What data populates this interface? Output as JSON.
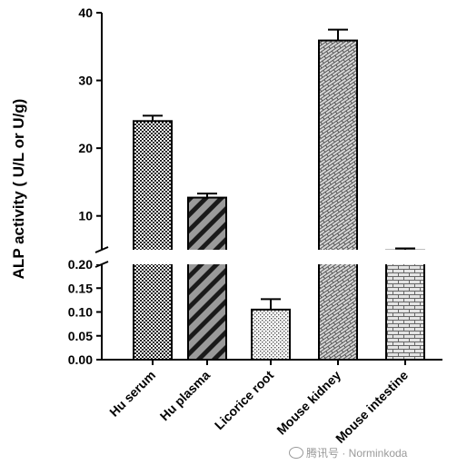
{
  "chart_data": {
    "type": "bar",
    "ylabel": "ALP activity ( U/L or U/g)",
    "categories": [
      "Hu serum",
      "Hu plasma",
      "Licorice root",
      "Mouse kidney",
      "Mouse intestine"
    ],
    "values": [
      24.0,
      12.7,
      0.105,
      35.9,
      4.9
    ],
    "errors": [
      0.8,
      0.6,
      0.022,
      1.6,
      0.3
    ],
    "patterns": [
      "checker",
      "diagonal-stripes",
      "dots",
      "brick-diagonal",
      "brick"
    ],
    "fill_colors": [
      "#cfcfcf",
      "#6e6e6e",
      "#f4f4f4",
      "#e2e2e2",
      "#dcdcdc"
    ],
    "axis_break": true,
    "upper_segment": {
      "ylim": [
        5,
        40
      ],
      "ticks": [
        "10",
        "20",
        "30",
        "40"
      ]
    },
    "lower_segment": {
      "ylim": [
        0,
        0.2
      ],
      "ticks": [
        "0.00",
        "0.05",
        "0.10",
        "0.15",
        "0.20"
      ]
    },
    "grid": false,
    "legend": "none"
  },
  "watermark": {
    "text": "腾讯号 · Norminkoda",
    "icon": "wechat-icon"
  }
}
